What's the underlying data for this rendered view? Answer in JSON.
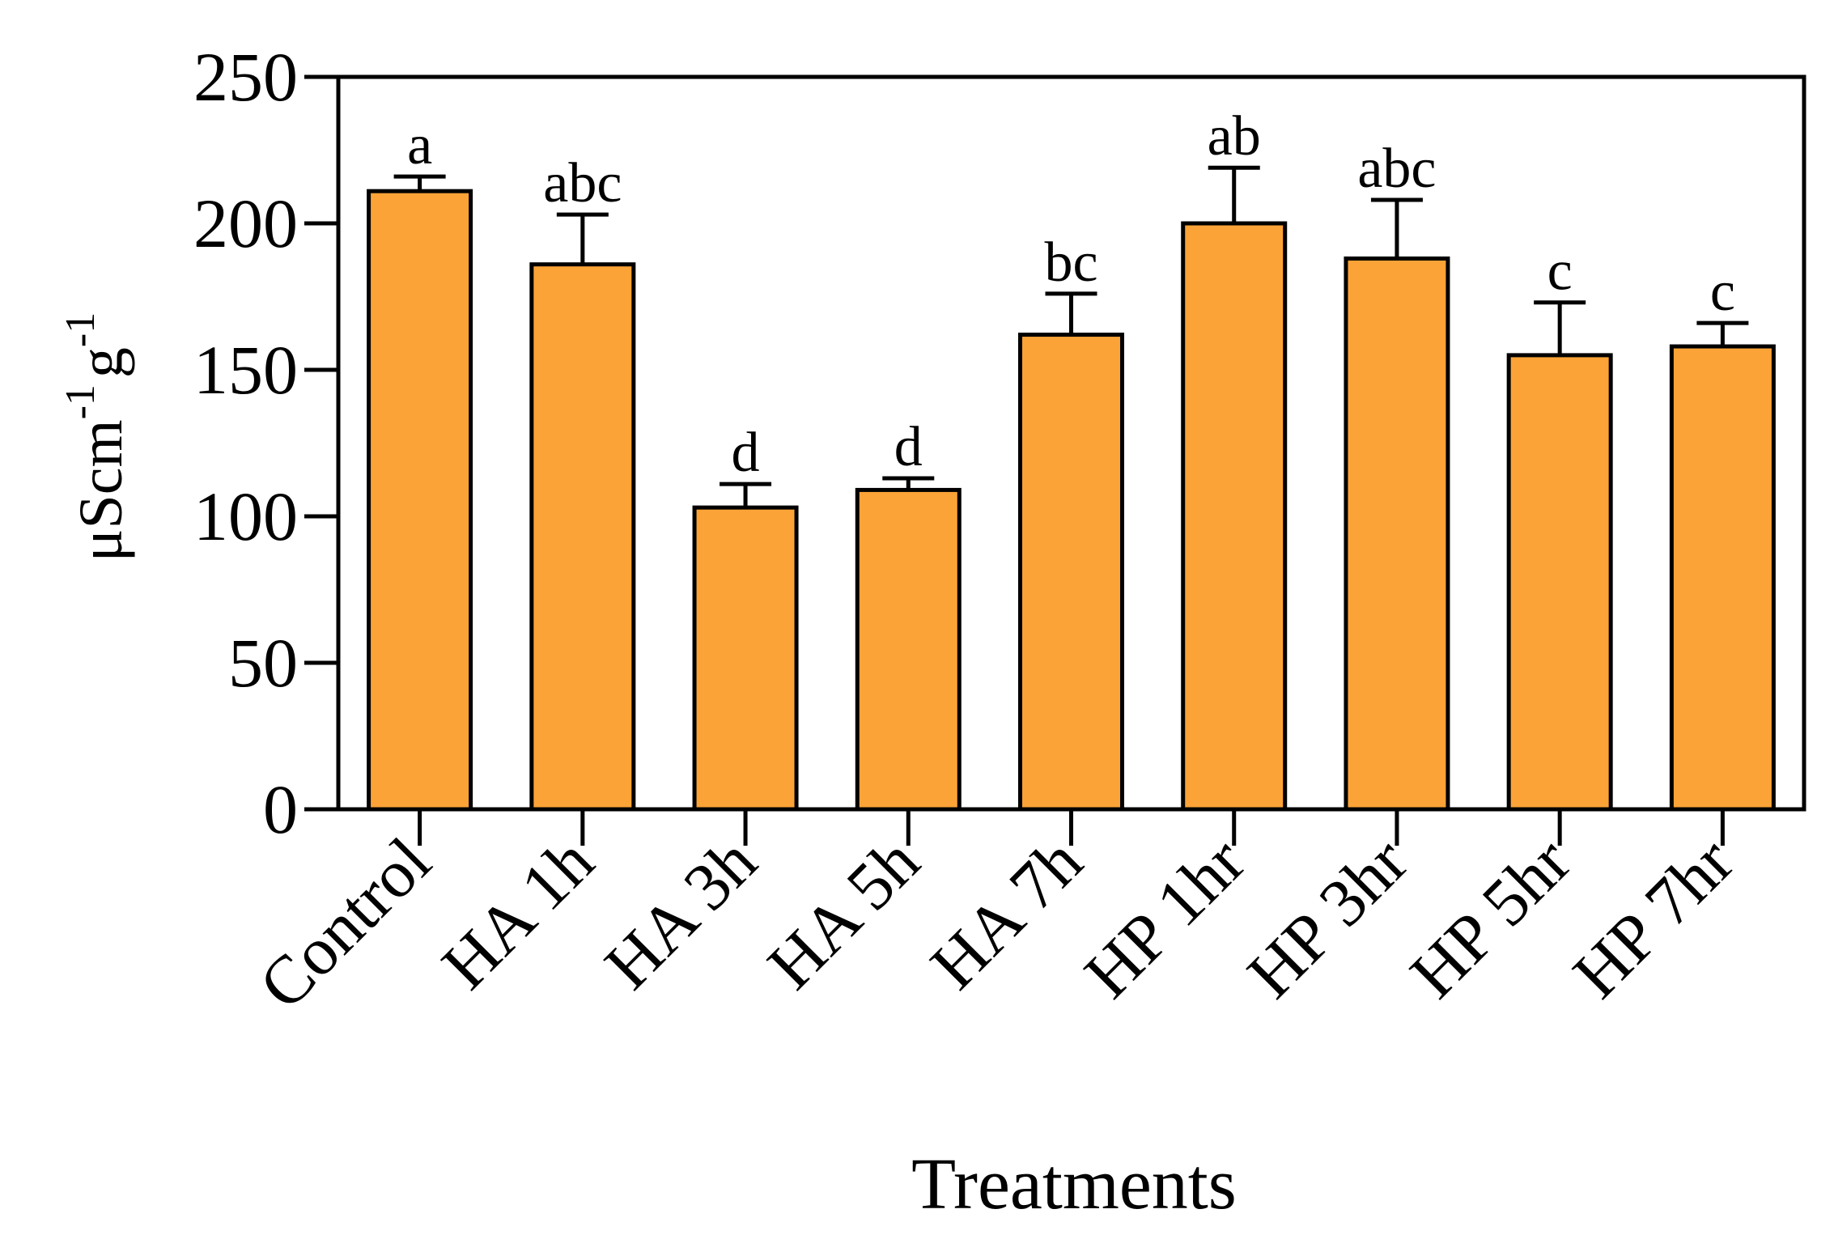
{
  "chart_data": {
    "type": "bar",
    "categories": [
      "Control",
      "HA 1h",
      "HA 3h",
      "HA 5h",
      "HA 7h",
      "HP 1hr",
      "HP 3hr",
      "HP 5hr",
      "HP 7hr"
    ],
    "values": [
      211,
      186,
      103,
      109,
      162,
      200,
      188,
      155,
      158
    ],
    "errors": [
      5,
      17,
      8,
      4,
      14,
      19,
      20,
      18,
      8
    ],
    "significance_letters": [
      "a",
      "abc",
      "d",
      "d",
      "bc",
      "ab",
      "abc",
      "c",
      "c"
    ],
    "title": "",
    "xlabel": "Treatments",
    "ylabel": {
      "base": "μScm",
      "sup1": "-1",
      "mid": "g",
      "sup2": "-1"
    },
    "ylim": [
      0,
      250
    ],
    "yticks": [
      0,
      50,
      100,
      150,
      200,
      250
    ],
    "grid": false,
    "colors": {
      "bar_fill": "#FBA337",
      "outline": "#000000"
    }
  }
}
